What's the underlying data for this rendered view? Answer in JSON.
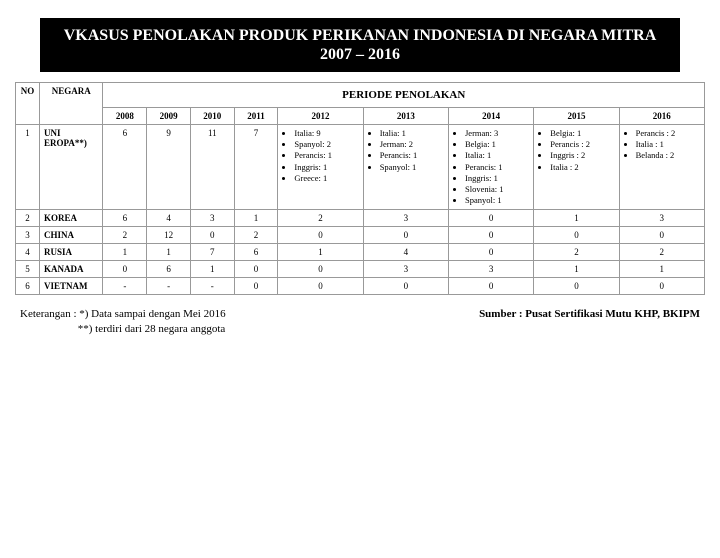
{
  "title": "VKASUS PENOLAKAN PRODUK PERIKANAN INDONESIA DI NEGARA MITRA  2007 – 2016",
  "headers": {
    "no": "NO",
    "negara": "NEGARA",
    "periode": "PERIODE PENOLAKAN",
    "years": [
      "2008",
      "2009",
      "2010",
      "2011",
      "2012",
      "2013",
      "2014",
      "2015",
      "2016"
    ]
  },
  "rows": [
    {
      "no": "1",
      "negara": "UNI EROPA**)",
      "cells": {
        "2008": "6",
        "2009": "9",
        "2010": "11",
        "2011": "7",
        "2012": [
          "Italia: 9",
          "Spanyol: 2",
          "Perancis: 1",
          "Inggris: 1",
          "Greece: 1"
        ],
        "2013": [
          "Italia: 1",
          "Jerman: 2",
          "Perancis: 1",
          "Spanyol: 1"
        ],
        "2014": [
          "Jerman: 3",
          "Belgia: 1",
          "Italia: 1",
          "Perancis: 1",
          "Inggris: 1",
          "Slovenia: 1",
          "Spanyol: 1"
        ],
        "2015": [
          "Belgia: 1",
          "Perancis : 2",
          "Inggris : 2",
          "Italia : 2"
        ],
        "2016": [
          "Perancis : 2",
          "Italia : 1",
          "Belanda : 2"
        ]
      }
    },
    {
      "no": "2",
      "negara": "KOREA",
      "cells": {
        "2008": "6",
        "2009": "4",
        "2010": "3",
        "2011": "1",
        "2012": "2",
        "2013": "3",
        "2014": "0",
        "2015": "1",
        "2016": "3"
      }
    },
    {
      "no": "3",
      "negara": "CHINA",
      "cells": {
        "2008": "2",
        "2009": "12",
        "2010": "0",
        "2011": "2",
        "2012": "0",
        "2013": "0",
        "2014": "0",
        "2015": "0",
        "2016": "0"
      }
    },
    {
      "no": "4",
      "negara": "RUSIA",
      "cells": {
        "2008": "1",
        "2009": "1",
        "2010": "7",
        "2011": "6",
        "2012": "1",
        "2013": "4",
        "2014": "0",
        "2015": "2",
        "2016": "2"
      }
    },
    {
      "no": "5",
      "negara": "KANADA",
      "cells": {
        "2008": "0",
        "2009": "6",
        "2010": "1",
        "2011": "0",
        "2012": "0",
        "2013": "3",
        "2014": "3",
        "2015": "1",
        "2016": "1"
      }
    },
    {
      "no": "6",
      "negara": "VIETNAM",
      "cells": {
        "2008": "-",
        "2009": "-",
        "2010": "-",
        "2011": "0",
        "2012": "0",
        "2013": "0",
        "2014": "0",
        "2015": "0",
        "2016": "0"
      }
    }
  ],
  "footer": {
    "keterangan_label": "Keterangan :",
    "keterangan_line1": "*) Data sampai dengan Mei 2016",
    "keterangan_line2": "**) terdiri dari 28 negara anggota",
    "sumber": "Sumber : Pusat Sertifikasi Mutu KHP, BKIPM"
  }
}
